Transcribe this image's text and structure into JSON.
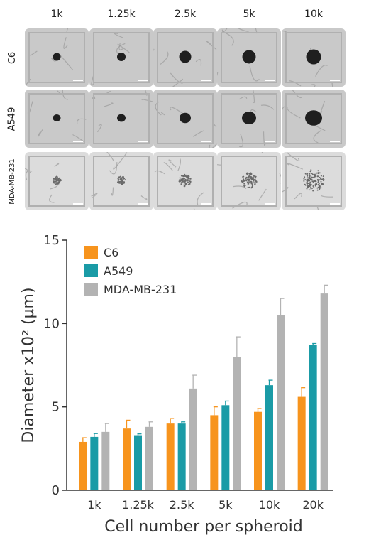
{
  "image_grid": {
    "columns": [
      "1k",
      "1.25k",
      "2.5k",
      "5k",
      "10k"
    ],
    "rows": [
      {
        "label": "C6",
        "style": "dense",
        "spheroid_scale": [
          0.55,
          0.6,
          0.85,
          0.95,
          1.05
        ]
      },
      {
        "label": "A549",
        "style": "irregular",
        "spheroid_scale": [
          0.55,
          0.6,
          0.8,
          1.0,
          1.2
        ]
      },
      {
        "label": "MDA-MB-231",
        "style": "loose",
        "spheroid_scale": [
          0.65,
          0.65,
          0.95,
          1.25,
          1.7
        ]
      }
    ]
  },
  "chart_data": {
    "type": "bar",
    "xlabel": "Cell number per spheroid",
    "ylabel": "Diameter x10² (µm)",
    "ylim": [
      0,
      15
    ],
    "yticks": [
      0,
      5,
      10,
      15
    ],
    "categories": [
      "1k",
      "1.25k",
      "2.5k",
      "5k",
      "10k",
      "20k"
    ],
    "legend_position": "top-left",
    "grid": false,
    "series": [
      {
        "name": "C6",
        "color": "#f7941d",
        "values": [
          2.9,
          3.7,
          4.0,
          4.5,
          4.7,
          5.6
        ],
        "errors": [
          0.25,
          0.5,
          0.3,
          0.5,
          0.2,
          0.55
        ]
      },
      {
        "name": "A549",
        "color": "#1a9ba6",
        "values": [
          3.2,
          3.3,
          4.0,
          5.1,
          6.3,
          8.7
        ],
        "errors": [
          0.2,
          0.08,
          0.1,
          0.25,
          0.3,
          0.1
        ]
      },
      {
        "name": "MDA-MB-231",
        "color": "#b3b3b3",
        "values": [
          3.5,
          3.8,
          6.1,
          8.0,
          10.5,
          11.8
        ],
        "errors": [
          0.5,
          0.3,
          0.8,
          1.2,
          1.0,
          0.5
        ]
      }
    ]
  }
}
